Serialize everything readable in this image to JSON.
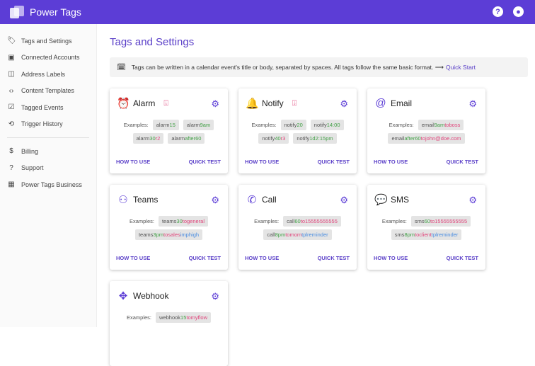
{
  "header": {
    "app_title": "Power Tags",
    "help_icon": "help-circle-icon",
    "account_icon": "account-circle-icon"
  },
  "sidebar": {
    "items": [
      {
        "label": "Tags and Settings",
        "icon": "label-icon",
        "glyph": "🏷"
      },
      {
        "label": "Connected Accounts",
        "icon": "account-box-icon",
        "glyph": "▣"
      },
      {
        "label": "Address Labels",
        "icon": "book-open-icon",
        "glyph": "◫"
      },
      {
        "label": "Content Templates",
        "icon": "code-icon",
        "glyph": "‹›"
      },
      {
        "label": "Tagged Events",
        "icon": "calendar-check-icon",
        "glyph": "☑"
      },
      {
        "label": "Trigger History",
        "icon": "history-icon",
        "glyph": "⟲"
      }
    ],
    "items2": [
      {
        "label": "Billing",
        "icon": "dollar-icon",
        "glyph": "$"
      },
      {
        "label": "Support",
        "icon": "help-icon",
        "glyph": "?"
      },
      {
        "label": "Power Tags Business",
        "icon": "domain-icon",
        "glyph": "▦"
      }
    ]
  },
  "main": {
    "title": "Tags and Settings",
    "info": {
      "text": "Tags can be written in a calendar event's title or body, separated by spaces. All tags follow the same basic format. ⟶",
      "link": "Quick Start"
    },
    "examples_label": "Examples:",
    "how_label": "HOW TO USE",
    "test_label": "QUICK TEST",
    "cards": [
      {
        "name": "Alarm",
        "icon": "alarm-icon",
        "glyph": "⏰",
        "device": true,
        "tags": [
          [
            [
              "alarm",
              ""
            ],
            [
              "15",
              "g"
            ]
          ],
          [
            [
              "alarm",
              ""
            ],
            [
              "9am",
              "g"
            ]
          ],
          [
            [
              "alarm",
              ""
            ],
            [
              "30",
              "g"
            ],
            [
              "r2",
              "r"
            ]
          ],
          [
            [
              "alarm",
              ""
            ],
            [
              "after60",
              "g"
            ]
          ]
        ]
      },
      {
        "name": "Notify",
        "icon": "bell-icon",
        "glyph": "🔔",
        "device": true,
        "tags": [
          [
            [
              "notify",
              ""
            ],
            [
              "20",
              "g"
            ]
          ],
          [
            [
              "notify",
              ""
            ],
            [
              "14:00",
              "g"
            ]
          ],
          [
            [
              "notify",
              ""
            ],
            [
              "40",
              "g"
            ],
            [
              "r3",
              "r"
            ]
          ],
          [
            [
              "notify",
              ""
            ],
            [
              "1d2:15pm",
              "g"
            ]
          ]
        ]
      },
      {
        "name": "Email",
        "icon": "at-icon",
        "glyph": "@",
        "device": false,
        "tags": [
          [
            [
              "email",
              ""
            ],
            [
              "9am",
              "g"
            ],
            [
              "toboss",
              "r"
            ]
          ],
          [
            [
              "email",
              ""
            ],
            [
              "after60",
              "g"
            ],
            [
              "tojohn@doe.com",
              "r"
            ]
          ]
        ]
      },
      {
        "name": "Teams",
        "icon": "teams-icon",
        "glyph": "⚇",
        "device": false,
        "tags": [
          [
            [
              "teams",
              ""
            ],
            [
              "30",
              "g"
            ],
            [
              "togeneral",
              "r"
            ]
          ],
          [
            [
              "teams",
              ""
            ],
            [
              "3pm",
              "g"
            ],
            [
              "tosales",
              "r"
            ],
            [
              "imphigh",
              "b"
            ]
          ]
        ]
      },
      {
        "name": "Call",
        "icon": "phone-call-icon",
        "glyph": "✆",
        "device": false,
        "tags": [
          [
            [
              "call",
              ""
            ],
            [
              "60",
              "g"
            ],
            [
              "to15555555555",
              "r"
            ]
          ],
          [
            [
              "call",
              ""
            ],
            [
              "8pm",
              "g"
            ],
            [
              "tomom",
              "r"
            ],
            [
              "tplreminder",
              "b"
            ]
          ]
        ]
      },
      {
        "name": "SMS",
        "icon": "message-icon",
        "glyph": "💬",
        "device": false,
        "tags": [
          [
            [
              "sms",
              ""
            ],
            [
              "60",
              "g"
            ],
            [
              "to15555555555",
              "r"
            ]
          ],
          [
            [
              "sms",
              ""
            ],
            [
              "8pm",
              "g"
            ],
            [
              "toclient",
              "r"
            ],
            [
              "tplreminder",
              "b"
            ]
          ]
        ]
      },
      {
        "name": "Webhook",
        "icon": "webhook-icon",
        "glyph": "✥",
        "device": false,
        "tags": [
          [
            [
              "webhook",
              ""
            ],
            [
              "15",
              "g"
            ],
            [
              "tomyflow",
              "r"
            ]
          ]
        ]
      }
    ]
  },
  "colors": {
    "brand": "#5c3dd6",
    "green": "#43a047",
    "red": "#e0457b",
    "blue": "#4a8de0"
  }
}
